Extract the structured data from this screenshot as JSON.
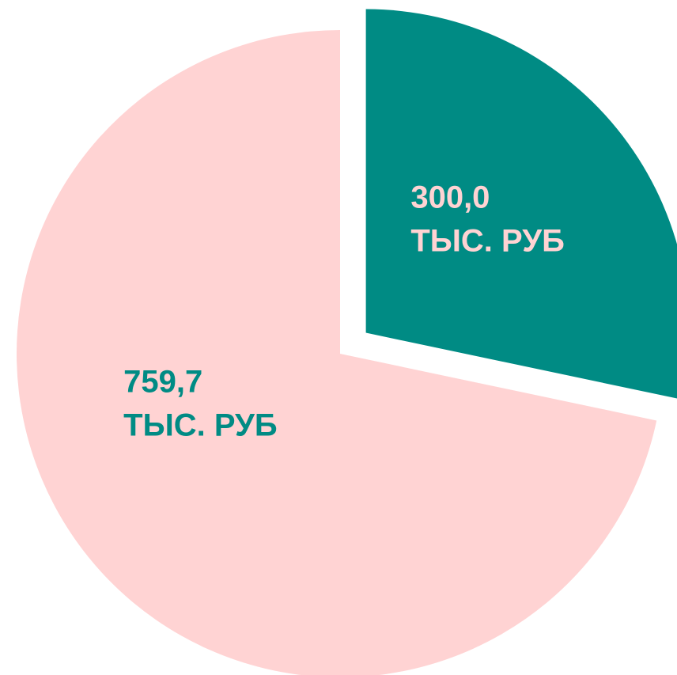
{
  "chart_data": {
    "type": "pie",
    "values": [
      300.0,
      759.7
    ],
    "value_labels": [
      "300,0",
      "759,7"
    ],
    "unit_label": "ТЫС. РУБ",
    "colors": [
      "#008b84",
      "#ffd3d3"
    ],
    "label_colors": [
      "#ffd3d3",
      "#008b84"
    ],
    "explode": [
      true,
      false
    ]
  }
}
